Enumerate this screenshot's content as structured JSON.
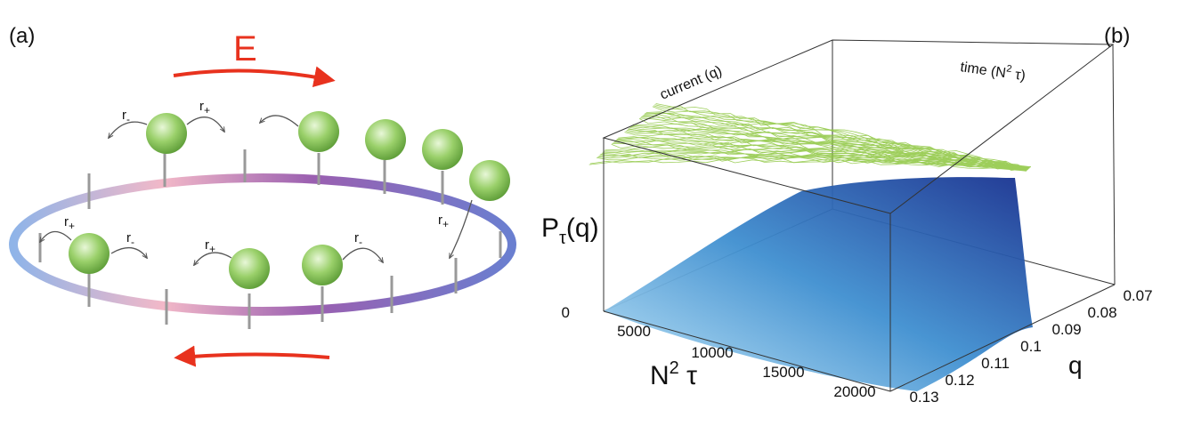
{
  "panel_a": {
    "label": "(a)",
    "field": "E",
    "rates": [
      {
        "base": "r",
        "sub": "-"
      },
      {
        "base": "r",
        "sub": "+"
      },
      {
        "base": "r",
        "sub": "+"
      },
      {
        "base": "r",
        "sub": "-"
      },
      {
        "base": "r",
        "sub": "+"
      },
      {
        "base": "r",
        "sub": "-"
      },
      {
        "base": "r",
        "sub": "+"
      }
    ]
  },
  "panel_b": {
    "label": "(b)",
    "top_labels": {
      "current": "current (q)",
      "time": {
        "start": "time (N",
        "sup": "2",
        "end": " τ)"
      }
    },
    "z_axis": {
      "label": {
        "base": "P",
        "sub": "τ",
        "end": "(q)"
      },
      "ticks": [
        "0"
      ]
    },
    "x_axis": {
      "label": {
        "base": "N",
        "sup": "2",
        "end": " τ"
      },
      "ticks": [
        "5000",
        "10000",
        "15000",
        "20000"
      ]
    },
    "y_axis": {
      "label": "q",
      "ticks": [
        "0.07",
        "0.08",
        "0.09",
        "0.1",
        "0.11",
        "0.12",
        "0.13"
      ]
    }
  }
}
